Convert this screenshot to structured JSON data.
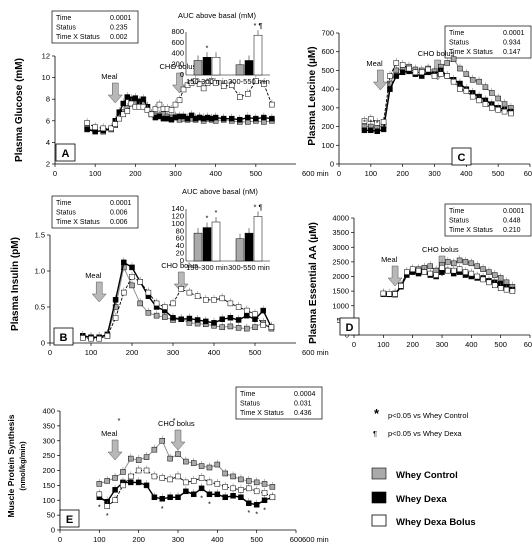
{
  "colors": {
    "whey_control": "#a9a9a9",
    "whey_dexa": "#000000",
    "whey_dexa_bolus": "#ffffff",
    "arrow": "#b8b8b8"
  },
  "legend": {
    "sig_star": "*",
    "sig_star_text": "p<0.05 vs Whey Control",
    "sig_para": "¶",
    "sig_para_text": "p<0.05 vs Whey Dexa",
    "items": [
      "Whey Control",
      "Whey Dexa",
      "Whey Dexa Bolus"
    ]
  },
  "chart_data": [
    {
      "id": "A",
      "type": "line",
      "panel_letter": "A",
      "ylabel": "Plasma Glucose (mM)",
      "xunit": "600 min",
      "ylim": [
        2,
        12
      ],
      "xlim": [
        0,
        600
      ],
      "yticks": [
        "2",
        "4",
        "6",
        "8",
        "10",
        "12"
      ],
      "xticks": [
        "0",
        "100",
        "200",
        "300",
        "400",
        "500"
      ],
      "stats": [
        [
          "Time",
          "0.0001"
        ],
        [
          "Status",
          "0.235"
        ],
        [
          "Time X Status",
          "0.002"
        ]
      ],
      "events": [
        {
          "label": "Meal",
          "x": 150
        },
        {
          "label": "CHO bolus",
          "x": 310
        }
      ],
      "x": [
        80,
        100,
        120,
        140,
        150,
        160,
        170,
        180,
        190,
        200,
        210,
        220,
        230,
        240,
        250,
        260,
        270,
        280,
        290,
        300,
        310,
        320,
        330,
        340,
        350,
        360,
        370,
        380,
        390,
        400,
        420,
        440,
        460,
        480,
        500,
        520,
        540
      ],
      "series": [
        {
          "name": "Whey Control",
          "values": [
            5.3,
            5.1,
            5.0,
            5.2,
            5.6,
            6.3,
            6.8,
            7.2,
            7.6,
            7.6,
            7.4,
            7.6,
            7.3,
            6.6,
            6.5,
            6.5,
            6.6,
            6.4,
            6.3,
            6.4,
            6.1,
            6.2,
            6.1,
            6.2,
            6.1,
            6.3,
            6.0,
            6.2,
            6.1,
            6.0,
            6.1,
            6.0,
            5.9,
            5.9,
            6.0,
            5.9,
            6.0
          ]
        },
        {
          "name": "Whey Dexa",
          "values": [
            5.2,
            5.0,
            5.1,
            5.3,
            6.0,
            6.8,
            7.6,
            8.2,
            8.0,
            8.1,
            7.8,
            8.0,
            7.3,
            6.6,
            6.3,
            6.4,
            6.2,
            6.2,
            6.1,
            6.3,
            6.4,
            6.4,
            6.2,
            6.5,
            6.2,
            6.3,
            6.2,
            6.3,
            6.2,
            6.3,
            6.2,
            6.2,
            6.1,
            6.3,
            6.2,
            6.3,
            6.2
          ]
        },
        {
          "name": "Whey Dexa Bolus",
          "values": [
            5.8,
            5.4,
            5.3,
            5.3,
            5.7,
            6.2,
            6.6,
            6.9,
            7.6,
            7.3,
            7.3,
            7.3,
            7.0,
            6.6,
            7.1,
            7.5,
            7.1,
            7.1,
            7.0,
            7.5,
            7.9,
            8.9,
            9.3,
            9.5,
            9.7,
            9.4,
            9.0,
            9.5,
            9.7,
            9.5,
            9.2,
            9.3,
            8.2,
            8.5,
            9.7,
            9.4,
            7.5
          ]
        }
      ],
      "inset": {
        "title": "AUC  above basal (mM)",
        "ylabels": [
          "0",
          "200",
          "400",
          "600",
          "800"
        ],
        "ymax": 800,
        "groups": [
          "150-300 min",
          "300-550 min"
        ],
        "values": [
          [
            270,
            330,
            330
          ],
          [
            190,
            270,
            740
          ]
        ],
        "marks": [
          [
            "",
            "*",
            ""
          ],
          [
            "",
            "",
            "* ¶"
          ]
        ]
      }
    },
    {
      "id": "C",
      "type": "line",
      "panel_letter": "C",
      "ylabel": "Plasma Leucine (µM)",
      "xunit": "600 min",
      "ylim": [
        0,
        700
      ],
      "xlim": [
        0,
        600
      ],
      "yticks": [
        "0",
        "100",
        "200",
        "300",
        "400",
        "500",
        "600",
        "700"
      ],
      "xticks": [
        "0",
        "100",
        "200",
        "300",
        "400",
        "500",
        "600"
      ],
      "stats": [
        [
          "Time",
          "0.0001"
        ],
        [
          "Status",
          "0.934"
        ],
        [
          "Time X Status",
          "0.147"
        ]
      ],
      "events": [
        {
          "label": "Meal",
          "x": 130
        },
        {
          "label": "CHO bolus",
          "x": 310
        }
      ],
      "x": [
        80,
        100,
        120,
        140,
        160,
        180,
        200,
        220,
        240,
        260,
        280,
        300,
        320,
        340,
        360,
        380,
        400,
        420,
        440,
        460,
        480,
        500,
        520,
        540
      ],
      "series": [
        {
          "name": "Whey Control",
          "values": [
            200,
            200,
            195,
            205,
            430,
            500,
            510,
            520,
            505,
            500,
            510,
            495,
            520,
            540,
            560,
            510,
            480,
            450,
            440,
            410,
            380,
            350,
            320,
            300
          ]
        },
        {
          "name": "Whey Dexa",
          "values": [
            180,
            180,
            175,
            185,
            400,
            470,
            490,
            495,
            480,
            470,
            490,
            480,
            500,
            470,
            450,
            430,
            400,
            380,
            360,
            340,
            320,
            300,
            290,
            280
          ]
        },
        {
          "name": "Whey Dexa Bolus",
          "values": [
            230,
            240,
            220,
            225,
            470,
            540,
            530,
            510,
            490,
            490,
            505,
            470,
            480,
            470,
            440,
            400,
            390,
            360,
            340,
            320,
            300,
            290,
            280,
            270
          ]
        }
      ],
      "marks": [
        {
          "x": 80,
          "t": "*"
        },
        {
          "x": 100,
          "t": "*"
        },
        {
          "x": 120,
          "t": "*"
        }
      ]
    },
    {
      "id": "B",
      "type": "line",
      "panel_letter": "B",
      "ylabel": "Plasma Insulin (pM)",
      "xunit": "600 min",
      "ylim": [
        0,
        1.5
      ],
      "xlim": [
        0,
        600
      ],
      "yticks": [
        "0",
        "0.5",
        "1.0",
        "1.5"
      ],
      "xticks": [
        "0",
        "100",
        "200",
        "300",
        "400",
        "500"
      ],
      "stats": [
        [
          "Time",
          "0.0001"
        ],
        [
          "Status",
          "0.006"
        ],
        [
          "Time X Status",
          "0.006"
        ]
      ],
      "events": [
        {
          "label": "Meal",
          "x": 120
        },
        {
          "label": "CHO bolus",
          "x": 320
        }
      ],
      "x": [
        80,
        100,
        120,
        140,
        160,
        180,
        200,
        220,
        240,
        260,
        280,
        300,
        320,
        340,
        360,
        380,
        400,
        420,
        440,
        460,
        480,
        500,
        520,
        540
      ],
      "series": [
        {
          "name": "Whey Control",
          "values": [
            0.08,
            0.07,
            0.08,
            0.1,
            0.5,
            1.05,
            0.8,
            0.55,
            0.42,
            0.38,
            0.36,
            0.32,
            0.33,
            0.28,
            0.27,
            0.26,
            0.24,
            0.22,
            0.23,
            0.21,
            0.2,
            0.22,
            0.28,
            0.2
          ]
        },
        {
          "name": "Whey Dexa",
          "values": [
            0.1,
            0.08,
            0.08,
            0.12,
            0.6,
            1.12,
            1.05,
            0.85,
            0.65,
            0.5,
            0.45,
            0.35,
            0.33,
            0.34,
            0.32,
            0.3,
            0.28,
            0.33,
            0.35,
            0.32,
            0.38,
            0.33,
            0.45,
            0.22
          ]
        },
        {
          "name": "Whey Dexa Bolus",
          "values": [
            0.07,
            0.06,
            0.06,
            0.1,
            0.35,
            0.7,
            0.92,
            0.85,
            0.7,
            0.55,
            0.5,
            0.55,
            0.75,
            0.7,
            0.65,
            0.6,
            0.6,
            0.62,
            0.55,
            0.5,
            0.45,
            0.4,
            0.25,
            0.22
          ]
        }
      ],
      "inset": {
        "title": "AUC  above basal (nM)",
        "ylabels": [
          "0",
          "20",
          "40",
          "60",
          "80",
          "100",
          "120",
          "140"
        ],
        "ymax": 140,
        "groups": [
          "150-300 min",
          "300-550 min"
        ],
        "values": [
          [
            75,
            90,
            105
          ],
          [
            60,
            75,
            120
          ]
        ],
        "marks": [
          [
            "",
            "*",
            "*"
          ],
          [
            "",
            "",
            "* ¶"
          ]
        ]
      }
    },
    {
      "id": "D",
      "type": "line",
      "panel_letter": "D",
      "ylabel": "Plasma Essential AA (µM)",
      "xunit": "600 min",
      "ylim": [
        0,
        4000
      ],
      "xlim": [
        0,
        600
      ],
      "yticks": [
        "0",
        "500",
        "1000",
        "1500",
        "2000",
        "2500",
        "3000",
        "3500",
        "4000"
      ],
      "xticks": [
        "0",
        "100",
        "200",
        "300",
        "400",
        "500",
        "600"
      ],
      "stats": [
        [
          "Time",
          "0.0001"
        ],
        [
          "Status",
          "0.448"
        ],
        [
          "Time X Status",
          "0.210"
        ]
      ],
      "events": [
        {
          "label": "Meal",
          "x": 140
        },
        {
          "label": "CHO bolus",
          "x": 300
        }
      ],
      "x": [
        100,
        120,
        140,
        160,
        180,
        200,
        220,
        240,
        260,
        280,
        300,
        320,
        340,
        360,
        380,
        400,
        420,
        440,
        460,
        480,
        500,
        520,
        540
      ],
      "series": [
        {
          "name": "Whey Control",
          "values": [
            1400,
            1390,
            1420,
            1700,
            2100,
            2200,
            2250,
            2300,
            2350,
            2200,
            2400,
            2500,
            2450,
            2550,
            2500,
            2450,
            2350,
            2250,
            2150,
            2050,
            1950,
            1800,
            1650
          ]
        },
        {
          "name": "Whey Dexa",
          "values": [
            1400,
            1400,
            1380,
            1650,
            2050,
            2150,
            2100,
            2150,
            2050,
            2000,
            2150,
            2200,
            2100,
            2150,
            2050,
            2000,
            1950,
            1950,
            1850,
            1800,
            1750,
            1650,
            1550
          ]
        },
        {
          "name": "Whey Dexa Bolus",
          "values": [
            1420,
            1410,
            1400,
            1680,
            2150,
            2250,
            2200,
            2150,
            2100,
            2050,
            2300,
            2200,
            2200,
            2250,
            2150,
            2100,
            2000,
            1900,
            1800,
            1700,
            1600,
            1550,
            1500
          ]
        }
      ]
    },
    {
      "id": "E",
      "type": "line",
      "panel_letter": "E",
      "ylabel": "Muscle Protein Synthesis",
      "ylabel2": "(nmol/kg/min)",
      "xunit": "600 min",
      "ylim": [
        0,
        400
      ],
      "xlim": [
        0,
        600
      ],
      "yticks": [
        "0",
        "50",
        "100",
        "150",
        "200",
        "250",
        "300",
        "350",
        "400"
      ],
      "xticks": [
        "0",
        "100",
        "200",
        "300",
        "400",
        "500",
        "600"
      ],
      "stats": [
        [
          "Time",
          "0.0004"
        ],
        [
          "Status",
          "0.031"
        ],
        [
          "Time X Status",
          "0.436"
        ]
      ],
      "events": [
        {
          "label": "Meal",
          "x": 140
        },
        {
          "label": "CHO bolus",
          "x": 300
        }
      ],
      "x": [
        100,
        120,
        140,
        160,
        180,
        200,
        220,
        240,
        260,
        280,
        300,
        320,
        340,
        360,
        380,
        400,
        420,
        440,
        460,
        480,
        500,
        520,
        540
      ],
      "series": [
        {
          "name": "Whey Control",
          "values": [
            155,
            165,
            175,
            195,
            240,
            235,
            245,
            270,
            300,
            240,
            255,
            230,
            225,
            215,
            210,
            220,
            190,
            180,
            170,
            165,
            160,
            155,
            145
          ]
        },
        {
          "name": "Whey Dexa",
          "values": [
            110,
            95,
            135,
            160,
            160,
            160,
            150,
            110,
            105,
            110,
            110,
            130,
            120,
            140,
            120,
            120,
            110,
            115,
            110,
            90,
            85,
            100,
            110
          ]
        },
        {
          "name": "Whey Dexa Bolus",
          "values": [
            120,
            80,
            100,
            150,
            180,
            200,
            200,
            180,
            175,
            170,
            180,
            160,
            165,
            175,
            160,
            155,
            145,
            140,
            135,
            140,
            130,
            125,
            110
          ]
        }
      ],
      "marks": [
        {
          "x": 100,
          "t": "*"
        },
        {
          "x": 120,
          "t": "*"
        },
        {
          "x": 150,
          "t": "*"
        },
        {
          "x": 260,
          "t": "*"
        },
        {
          "x": 290,
          "t": "*"
        },
        {
          "x": 360,
          "t": "*"
        },
        {
          "x": 380,
          "t": "*"
        },
        {
          "x": 480,
          "t": "*"
        },
        {
          "x": 500,
          "t": "*"
        },
        {
          "x": 520,
          "t": "*"
        }
      ]
    }
  ]
}
